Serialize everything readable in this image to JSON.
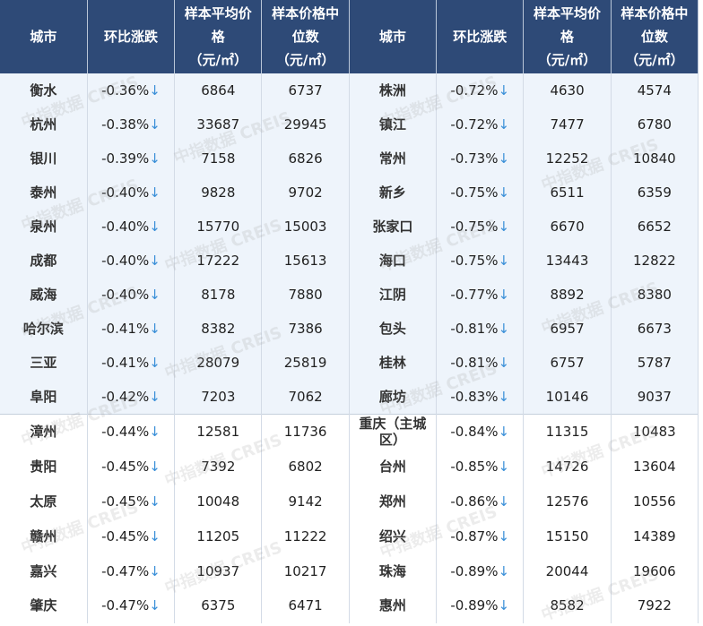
{
  "headers": [
    "城市",
    "环比涨跌",
    "样本平均价格",
    "（元/㎡）",
    "样本价格中位数",
    "（元/㎡）"
  ],
  "header_labels": {
    "city": "城市",
    "change": "环比涨跌",
    "avg": "样本平均价格",
    "median": "样本价格中位数",
    "unit": "（元/㎡）"
  },
  "down_arrow": "↓",
  "watermark": "中指数据 CREIS",
  "colors": {
    "header_bg": "#2e4a77",
    "tint_row": "#eef4fb",
    "arrow": "#3a8fd8"
  },
  "rows": [
    {
      "l": [
        "衡水",
        "-0.36%",
        "6864",
        "6737"
      ],
      "r": [
        "株洲",
        "-0.72%",
        "4630",
        "4574"
      ]
    },
    {
      "l": [
        "杭州",
        "-0.38%",
        "33687",
        "29945"
      ],
      "r": [
        "镇江",
        "-0.72%",
        "7477",
        "6780"
      ]
    },
    {
      "l": [
        "银川",
        "-0.39%",
        "7158",
        "6826"
      ],
      "r": [
        "常州",
        "-0.73%",
        "12252",
        "10840"
      ]
    },
    {
      "l": [
        "泰州",
        "-0.40%",
        "9828",
        "9702"
      ],
      "r": [
        "新乡",
        "-0.75%",
        "6511",
        "6359"
      ]
    },
    {
      "l": [
        "泉州",
        "-0.40%",
        "15770",
        "15003"
      ],
      "r": [
        "张家口",
        "-0.75%",
        "6670",
        "6652"
      ]
    },
    {
      "l": [
        "成都",
        "-0.40%",
        "17222",
        "15613"
      ],
      "r": [
        "海口",
        "-0.75%",
        "13443",
        "12822"
      ]
    },
    {
      "l": [
        "威海",
        "-0.40%",
        "8178",
        "7880"
      ],
      "r": [
        "江阴",
        "-0.77%",
        "8892",
        "8380"
      ]
    },
    {
      "l": [
        "哈尔滨",
        "-0.41%",
        "8382",
        "7386"
      ],
      "r": [
        "包头",
        "-0.81%",
        "6957",
        "6673"
      ]
    },
    {
      "l": [
        "三亚",
        "-0.41%",
        "28079",
        "25819"
      ],
      "r": [
        "桂林",
        "-0.81%",
        "6757",
        "5787"
      ]
    },
    {
      "l": [
        "阜阳",
        "-0.42%",
        "7203",
        "7062"
      ],
      "r": [
        "廊坊",
        "-0.83%",
        "10146",
        "9037"
      ]
    },
    {
      "l": [
        "漳州",
        "-0.44%",
        "12581",
        "11736"
      ],
      "r": [
        "重庆（主城区）",
        "-0.84%",
        "11315",
        "10483"
      ]
    },
    {
      "l": [
        "贵阳",
        "-0.45%",
        "7392",
        "6802"
      ],
      "r": [
        "台州",
        "-0.85%",
        "14726",
        "13604"
      ]
    },
    {
      "l": [
        "太原",
        "-0.45%",
        "10048",
        "9142"
      ],
      "r": [
        "郑州",
        "-0.86%",
        "12576",
        "10556"
      ]
    },
    {
      "l": [
        "赣州",
        "-0.45%",
        "11205",
        "11222"
      ],
      "r": [
        "绍兴",
        "-0.87%",
        "15150",
        "14389"
      ]
    },
    {
      "l": [
        "嘉兴",
        "-0.47%",
        "10937",
        "10217"
      ],
      "r": [
        "珠海",
        "-0.89%",
        "20044",
        "19606"
      ]
    },
    {
      "l": [
        "肇庆",
        "-0.47%",
        "6375",
        "6471"
      ],
      "r": [
        "惠州",
        "-0.89%",
        "8582",
        "7922"
      ]
    }
  ]
}
